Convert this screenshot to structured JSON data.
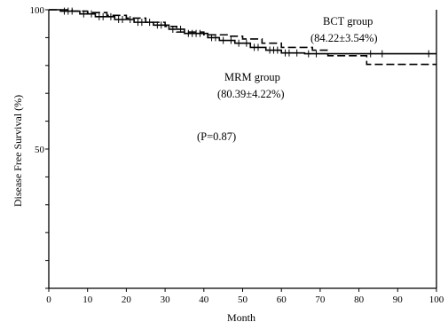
{
  "chart_data": {
    "type": "line",
    "title": "",
    "xlabel": "Month",
    "ylabel": "Disease Free Survival (%)",
    "xlim": [
      0,
      100
    ],
    "ylim": [
      0,
      100
    ],
    "x_ticks": [
      0,
      10,
      20,
      30,
      40,
      50,
      60,
      70,
      80,
      90,
      100
    ],
    "y_ticks": [
      50,
      100
    ],
    "y_tick_labels": [
      "50",
      "100"
    ],
    "grid": false,
    "legend": "none",
    "series": [
      {
        "name": "BCT group",
        "style": "solid",
        "color": "#000000",
        "x": [
          0,
          3,
          8,
          12,
          17,
          22,
          27,
          31,
          35,
          41,
          44,
          48,
          52,
          56,
          60,
          66,
          70,
          100
        ],
        "y": [
          100,
          99.5,
          98.5,
          97.5,
          96.5,
          95.5,
          94.5,
          93,
          91.5,
          90,
          89,
          88,
          86.5,
          85.5,
          84.5,
          84.2,
          84.2,
          84.2
        ]
      },
      {
        "name": "MRM group",
        "style": "dashed",
        "color": "#000000",
        "x": [
          0,
          6,
          10,
          15,
          20,
          25,
          30,
          33,
          40,
          46,
          50,
          55,
          60,
          68,
          72,
          80,
          82,
          100
        ],
        "y": [
          100,
          99.5,
          99,
          98,
          97,
          95.5,
          94,
          92,
          91,
          90.5,
          89.5,
          88,
          86.5,
          85.5,
          83.5,
          83.5,
          80.4,
          80.4
        ]
      }
    ],
    "censor_marks": {
      "x": [
        4,
        5,
        6,
        9,
        11,
        13,
        14,
        16,
        18,
        19,
        21,
        23,
        24,
        26,
        28,
        29,
        32,
        34,
        36,
        37,
        38,
        39,
        42,
        43,
        45,
        47,
        49,
        51,
        53,
        54,
        57,
        58,
        59,
        61,
        62,
        64,
        67,
        69,
        83,
        86,
        98
      ]
    },
    "annotations": [
      {
        "id": "bct_label",
        "text": "BCT group"
      },
      {
        "id": "bct_value",
        "text": "(84.22±3.54%)"
      },
      {
        "id": "mrm_label",
        "text": "MRM group"
      },
      {
        "id": "mrm_value",
        "text": "(80.39±4.22%)"
      },
      {
        "id": "p_value",
        "text": "(P=0.87)"
      }
    ]
  }
}
